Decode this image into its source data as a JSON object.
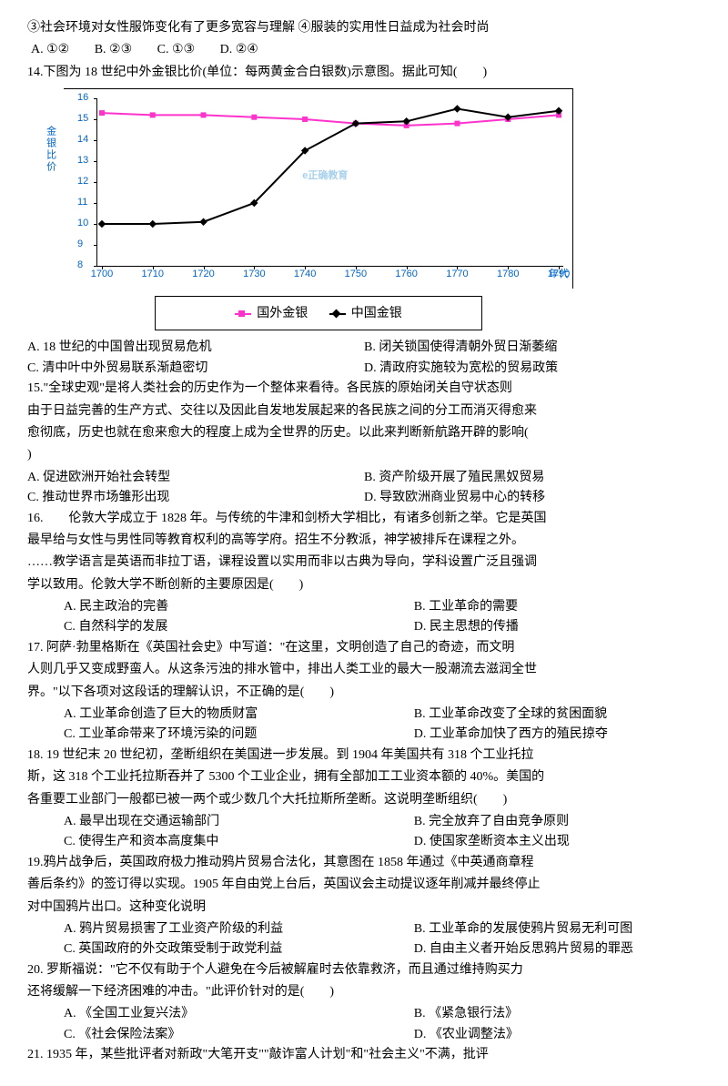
{
  "pre_q14": {
    "line1": "③社会环境对女性服饰变化有了更多宽容与理解 ④服装的实用性日益成为社会时尚",
    "opts": {
      "a": "A. ①②",
      "b": "B. ②③",
      "c": "C. ①③",
      "d": "D. ②④"
    }
  },
  "q14": {
    "stem": "14.下图为 18 世纪中外金银比价(单位：每两黄金合白银数)示意图。据此可知(　　)",
    "optA": "A. 18 世纪的中国曾出现贸易危机",
    "optB": "B. 闭关锁国使得清朝外贸日渐萎缩",
    "optC": "C. 清中叶中外贸易联系渐趋密切",
    "optD": "D. 清政府实施较为宽松的贸易政策"
  },
  "chart": {
    "type": "line",
    "y_axis_label": "金银比价",
    "ylim": [
      8,
      16
    ],
    "ytick_step": 1,
    "yticks": [
      8,
      9,
      10,
      11,
      12,
      13,
      14,
      15,
      16
    ],
    "xticks": [
      1700,
      1710,
      1720,
      1730,
      1740,
      1750,
      1760,
      1770,
      1780,
      1790
    ],
    "x_extra_label": "年代",
    "background_color": "#ffffff",
    "tick_color": "#0066cc",
    "series": [
      {
        "name": "国外金银",
        "color": "#ff33cc",
        "marker": "square",
        "x": [
          1700,
          1710,
          1720,
          1730,
          1740,
          1750,
          1760,
          1770,
          1780,
          1790
        ],
        "y": [
          15.3,
          15.2,
          15.2,
          15.1,
          15.0,
          14.8,
          14.7,
          14.8,
          15.0,
          15.2
        ]
      },
      {
        "name": "中国金银",
        "color": "#000000",
        "marker": "diamond",
        "x": [
          1700,
          1710,
          1720,
          1730,
          1740,
          1750,
          1760,
          1770,
          1780,
          1790
        ],
        "y": [
          10.0,
          10.0,
          10.1,
          11.0,
          13.5,
          14.8,
          14.9,
          15.5,
          15.1,
          15.4
        ]
      }
    ],
    "legend": {
      "a": "国外金银",
      "b": "中国金银"
    },
    "watermark": "e正确教育"
  },
  "q15": {
    "l1": "15.\"全球史观\"是将人类社会的历史作为一个整体来看待。各民族的原始闭关自守状态则",
    "l2": "由于日益完善的生产方式、交往以及因此自发地发展起来的各民族之间的分工而消灭得愈来",
    "l3": "愈彻底，历史也就在愈来愈大的程度上成为全世界的历史。以此来判断新航路开辟的影响(",
    "l4": ")",
    "optA": "A. 促进欧洲开始社会转型",
    "optB": "B. 资产阶级开展了殖民黑奴贸易",
    "optC": "C. 推动世界市场雏形出现",
    "optD": "D. 导致欧洲商业贸易中心的转移"
  },
  "q16": {
    "l1": "16.　　伦敦大学成立于 1828 年。与传统的牛津和剑桥大学相比，有诸多创新之举。它是英国",
    "l2": "最早给与女性与男性同等教育权利的高等学府。招生不分教派，神学被排斥在课程之外。",
    "l3": "……教学语言是英语而非拉丁语，课程设置以实用而非以古典为导向，学科设置广泛且强调",
    "l4": "学以致用。伦敦大学不断创新的主要原因是(　　)",
    "optA": "A. 民主政治的完善",
    "optB": "B. 工业革命的需要",
    "optC": "C. 自然科学的发展",
    "optD": "D. 民主思想的传播"
  },
  "q17": {
    "l1": "17. 阿萨·勃里格斯在《英国社会史》中写道：\"在这里，文明创造了自己的奇迹，而文明",
    "l2": "人则几乎又变成野蛮人。从这条污浊的排水管中，排出人类工业的最大一股潮流去滋润全世",
    "l3": "界。\"以下各项对这段话的理解认识，不正确的是(　　)",
    "optA": "A. 工业革命创造了巨大的物质财富",
    "optB": "B. 工业革命改变了全球的贫困面貌",
    "optC": "C. 工业革命带来了环境污染的问题",
    "optD": "D. 工业革命加快了西方的殖民掠夺"
  },
  "q18": {
    "l1": "18. 19 世纪末 20 世纪初，垄断组织在美国进一步发展。到 1904 年美国共有 318 个工业托拉",
    "l2": "斯，这 318 个工业托拉斯吞并了 5300 个工业企业，拥有全部加工工业资本额的 40%。美国的",
    "l3": "各重要工业部门一般都已被一两个或少数几个大托拉斯所垄断。这说明垄断组织(　　)",
    "optA": "A. 最早出现在交通运输部门",
    "optB": "B. 完全放弃了自由竞争原则",
    "optC": "C. 使得生产和资本高度集中",
    "optD": "D. 使国家垄断资本主义出现"
  },
  "q19": {
    "l1": "19.鸦片战争后，英国政府极力推动鸦片贸易合法化，其意图在 1858 年通过《中英通商章程",
    "l2": "善后条约》的签订得以实现。1905 年自由党上台后，英国议会主动提议逐年削减并最终停止",
    "l3": "对中国鸦片出口。这种变化说明",
    "optA": "A. 鸦片贸易损害了工业资产阶级的利益",
    "optB": "B. 工业革命的发展使鸦片贸易无利可图",
    "optC": "C. 英国政府的外交政策受制于政党利益",
    "optD": "D. 自由主义者开始反思鸦片贸易的罪恶"
  },
  "q20": {
    "l1": "20. 罗斯福说：\"它不仅有助于个人避免在今后被解雇时去依靠救济，而且通过维持购买力",
    "l2": "还将缓解一下经济困难的冲击。\"此评价针对的是(　　)",
    "optA": "A. 《全国工业复兴法》",
    "optB": "B. 《紧急银行法》",
    "optC": "C. 《社会保险法案》",
    "optD": "D. 《农业调整法》"
  },
  "q21": {
    "l1": "21. 1935 年，某些批评者对新政\"大笔开支\"\"敲诈富人计划\"和\"社会主义\"不满，批评"
  }
}
